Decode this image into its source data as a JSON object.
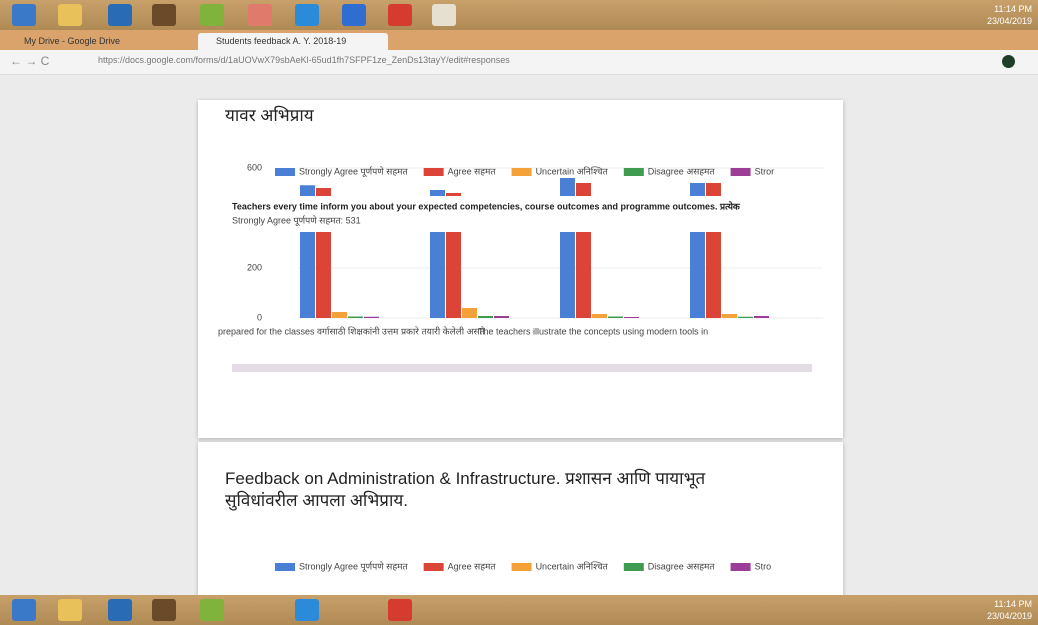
{
  "taskbar": {
    "time": "11:14 PM",
    "date": "23/04/2019"
  },
  "browser": {
    "tabs": [
      "My Drive - Google Drive",
      "Students feedback A. Y. 2018-19"
    ],
    "url": "https://docs.google.com/forms/d/1aUOVwX79sbAeKl-65ud1fh7SFPF1ze_ZenDs13tayY/edit#responses"
  },
  "cards": [
    {
      "heading": "यावर अभिप्राय",
      "chart_data": {
        "type": "bar",
        "categories": [
          "prepared for the classes वर्गासाठी शिक्षकांनी उत्तम प्रकारे तयारी केलेली असते",
          null,
          "The teachers illustrate the concepts using modern tools in",
          null
        ],
        "series": [
          {
            "name": "Strongly Agree पूर्णपणे सहमत",
            "color": "#4a7fd6",
            "values": [
              531,
              512,
              560,
              540
            ]
          },
          {
            "name": "Agree सहमत",
            "color": "#db4437",
            "values": [
              520,
              500,
              540,
              540
            ]
          },
          {
            "name": "Uncertain अनिश्चित",
            "color": "#f4a13a",
            "values": [
              24,
              40,
              16,
              16
            ]
          },
          {
            "name": "Disagree असहमत",
            "color": "#3f9b4f",
            "values": [
              6,
              8,
              6,
              5
            ]
          },
          {
            "name": "Stror",
            "color": "#9c3d97",
            "values": [
              5,
              8,
              4,
              8
            ]
          }
        ],
        "ylim": [
          0,
          600
        ],
        "yticks": [
          0,
          200,
          600
        ],
        "tooltip": {
          "title": "Teachers every time inform you about your expected competencies, course outcomes and programme outcomes. प्रत्येक",
          "label": "Strongly Agree पूर्णपणे सहमत: 531"
        }
      }
    },
    {
      "heading": "Feedback on Administration & Infrastructure. प्रशासन आणि पायाभूत सुविधांवरील आपला अभिप्राय.",
      "legend": [
        {
          "name": "Strongly Agree पूर्णपणे सहमत",
          "color": "#4a7fd6"
        },
        {
          "name": "Agree सहमत",
          "color": "#db4437"
        },
        {
          "name": "Uncertain अनिश्चित",
          "color": "#f4a13a"
        },
        {
          "name": "Disagree असहमत",
          "color": "#3f9b4f"
        },
        {
          "name": "Stro",
          "color": "#9c3d97"
        }
      ]
    }
  ]
}
